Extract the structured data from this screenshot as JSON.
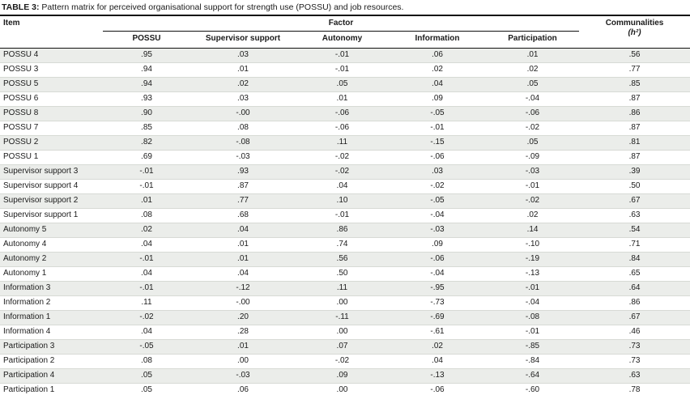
{
  "caption": {
    "label": "TABLE 3:",
    "text": " Pattern matrix for perceived organisational support for strength use (POSSU) and job resources."
  },
  "table": {
    "item_header": "Item",
    "factor_header": "Factor",
    "communalities_header": "Communalities",
    "communalities_sub": "(h²)",
    "factor_columns": [
      "POSSU",
      "Supervisor support",
      "Autonomy",
      "Information",
      "Participation"
    ],
    "rows": [
      {
        "item": "POSSU 4",
        "values": [
          ".95",
          ".03",
          "-.01",
          ".06",
          ".01",
          ".56"
        ]
      },
      {
        "item": "POSSU 3",
        "values": [
          ".94",
          ".01",
          "-.01",
          ".02",
          ".02",
          ".77"
        ]
      },
      {
        "item": "POSSU 5",
        "values": [
          ".94",
          ".02",
          ".05",
          ".04",
          ".05",
          ".85"
        ]
      },
      {
        "item": "POSSU 6",
        "values": [
          ".93",
          ".03",
          ".01",
          ".09",
          "-.04",
          ".87"
        ]
      },
      {
        "item": "POSSU 8",
        "values": [
          ".90",
          "-.00",
          "-.06",
          "-.05",
          "-.06",
          ".86"
        ]
      },
      {
        "item": "POSSU 7",
        "values": [
          ".85",
          ".08",
          "-.06",
          "-.01",
          "-.02",
          ".87"
        ]
      },
      {
        "item": "POSSU 2",
        "values": [
          ".82",
          "-.08",
          ".11",
          "-.15",
          ".05",
          ".81"
        ]
      },
      {
        "item": "POSSU 1",
        "values": [
          ".69",
          "-.03",
          "-.02",
          "-.06",
          "-.09",
          ".87"
        ]
      },
      {
        "item": "Supervisor support 3",
        "values": [
          "-.01",
          ".93",
          "-.02",
          ".03",
          "-.03",
          ".39"
        ]
      },
      {
        "item": "Supervisor support 4",
        "values": [
          "-.01",
          ".87",
          ".04",
          "-.02",
          "-.01",
          ".50"
        ]
      },
      {
        "item": "Supervisor support 2",
        "values": [
          ".01",
          ".77",
          ".10",
          "-.05",
          "-.02",
          ".67"
        ]
      },
      {
        "item": "Supervisor support 1",
        "values": [
          ".08",
          ".68",
          "-.01",
          "-.04",
          ".02",
          ".63"
        ]
      },
      {
        "item": "Autonomy 5",
        "values": [
          ".02",
          ".04",
          ".86",
          "-.03",
          ".14",
          ".54"
        ]
      },
      {
        "item": "Autonomy 4",
        "values": [
          ".04",
          ".01",
          ".74",
          ".09",
          "-.10",
          ".71"
        ]
      },
      {
        "item": "Autonomy 2",
        "values": [
          "-.01",
          ".01",
          ".56",
          "-.06",
          "-.19",
          ".84"
        ]
      },
      {
        "item": "Autonomy 1",
        "values": [
          ".04",
          ".04",
          ".50",
          "-.04",
          "-.13",
          ".65"
        ]
      },
      {
        "item": "Information 3",
        "values": [
          "-.01",
          "-.12",
          ".11",
          "-.95",
          "-.01",
          ".64"
        ]
      },
      {
        "item": "Information 2",
        "values": [
          ".11",
          "-.00",
          ".00",
          "-.73",
          "-.04",
          ".86"
        ]
      },
      {
        "item": "Information 1",
        "values": [
          "-.02",
          ".20",
          "-.11",
          "-.69",
          "-.08",
          ".67"
        ]
      },
      {
        "item": "Information 4",
        "values": [
          ".04",
          ".28",
          ".00",
          "-.61",
          "-.01",
          ".46"
        ]
      },
      {
        "item": "Participation 3",
        "values": [
          "-.05",
          ".01",
          ".07",
          ".02",
          "-.85",
          ".73"
        ]
      },
      {
        "item": "Participation 2",
        "values": [
          ".08",
          ".00",
          "-.02",
          ".04",
          "-.84",
          ".73"
        ]
      },
      {
        "item": "Participation 4",
        "values": [
          ".05",
          "-.03",
          ".09",
          "-.13",
          "-.64",
          ".63"
        ]
      },
      {
        "item": "Participation 1",
        "values": [
          ".05",
          ".06",
          ".00",
          "-.06",
          "-.60",
          ".78"
        ]
      }
    ]
  },
  "colors": {
    "stripe": "#ebedea",
    "rule": "#101010",
    "row_line": "#d7dad5"
  }
}
